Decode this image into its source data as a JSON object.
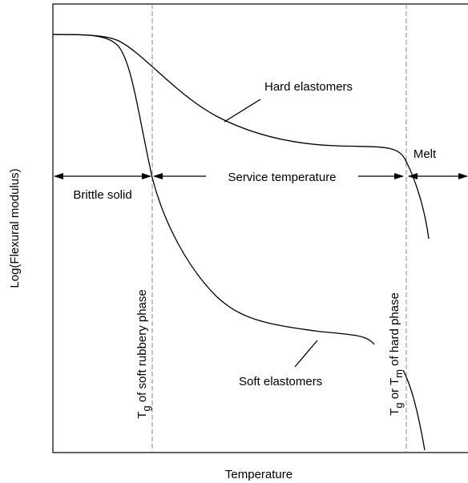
{
  "axes": {
    "y_label": "Log(Flexural modulus)",
    "x_label": "Temperature"
  },
  "curves": {
    "hard": "Hard elastomers",
    "soft": "Soft elastomers"
  },
  "regions": {
    "brittle": "Brittle solid",
    "service": "Service temperature",
    "melt": "Melt"
  },
  "transitions": {
    "soft_phase": [
      {
        "text": "T"
      },
      {
        "sub": "g"
      },
      {
        "text": " of soft rubbery phase"
      }
    ],
    "hard_phase": [
      {
        "text": "T"
      },
      {
        "sub": "g"
      },
      {
        "text": " or T"
      },
      {
        "sub": "m"
      },
      {
        "text": " of hard phase"
      }
    ]
  }
}
